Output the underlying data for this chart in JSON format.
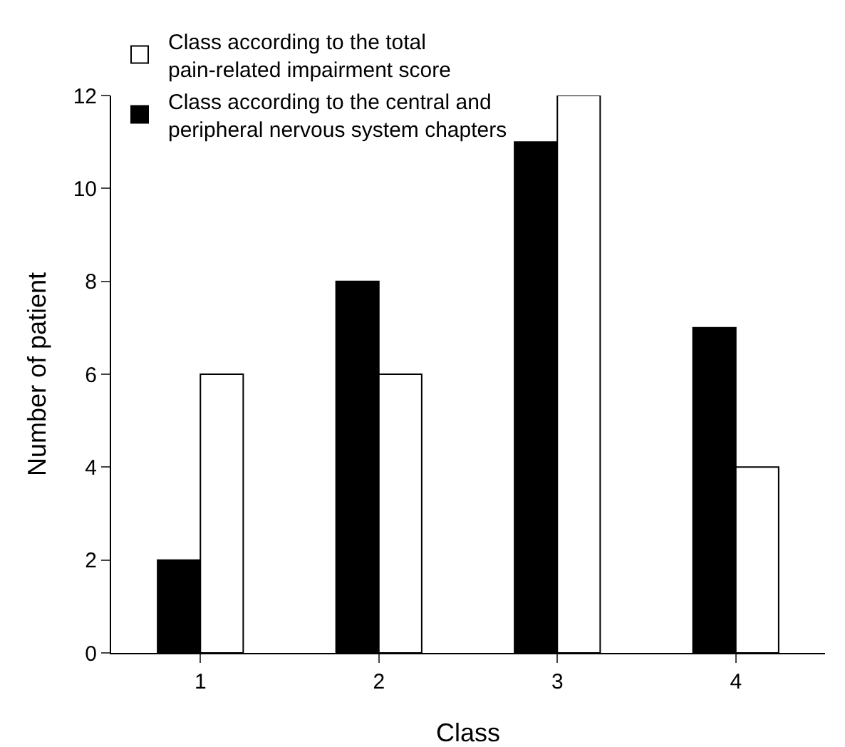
{
  "chart_data": {
    "type": "bar",
    "xlabel": "Class",
    "ylabel": "Number of patient",
    "categories": [
      "1",
      "2",
      "3",
      "4"
    ],
    "series": [
      {
        "name": "Class according to the central and peripheral nervous system chapters",
        "color": "#000000",
        "values": [
          2,
          8,
          11,
          7
        ]
      },
      {
        "name": "Class according to the total pain-related impairment score",
        "color": "#ffffff",
        "values": [
          6,
          6,
          12,
          4
        ]
      }
    ],
    "ylim": [
      0,
      12
    ],
    "yticks": [
      0,
      2,
      4,
      6,
      8,
      10,
      12
    ],
    "grid": false,
    "legend": "top left"
  }
}
